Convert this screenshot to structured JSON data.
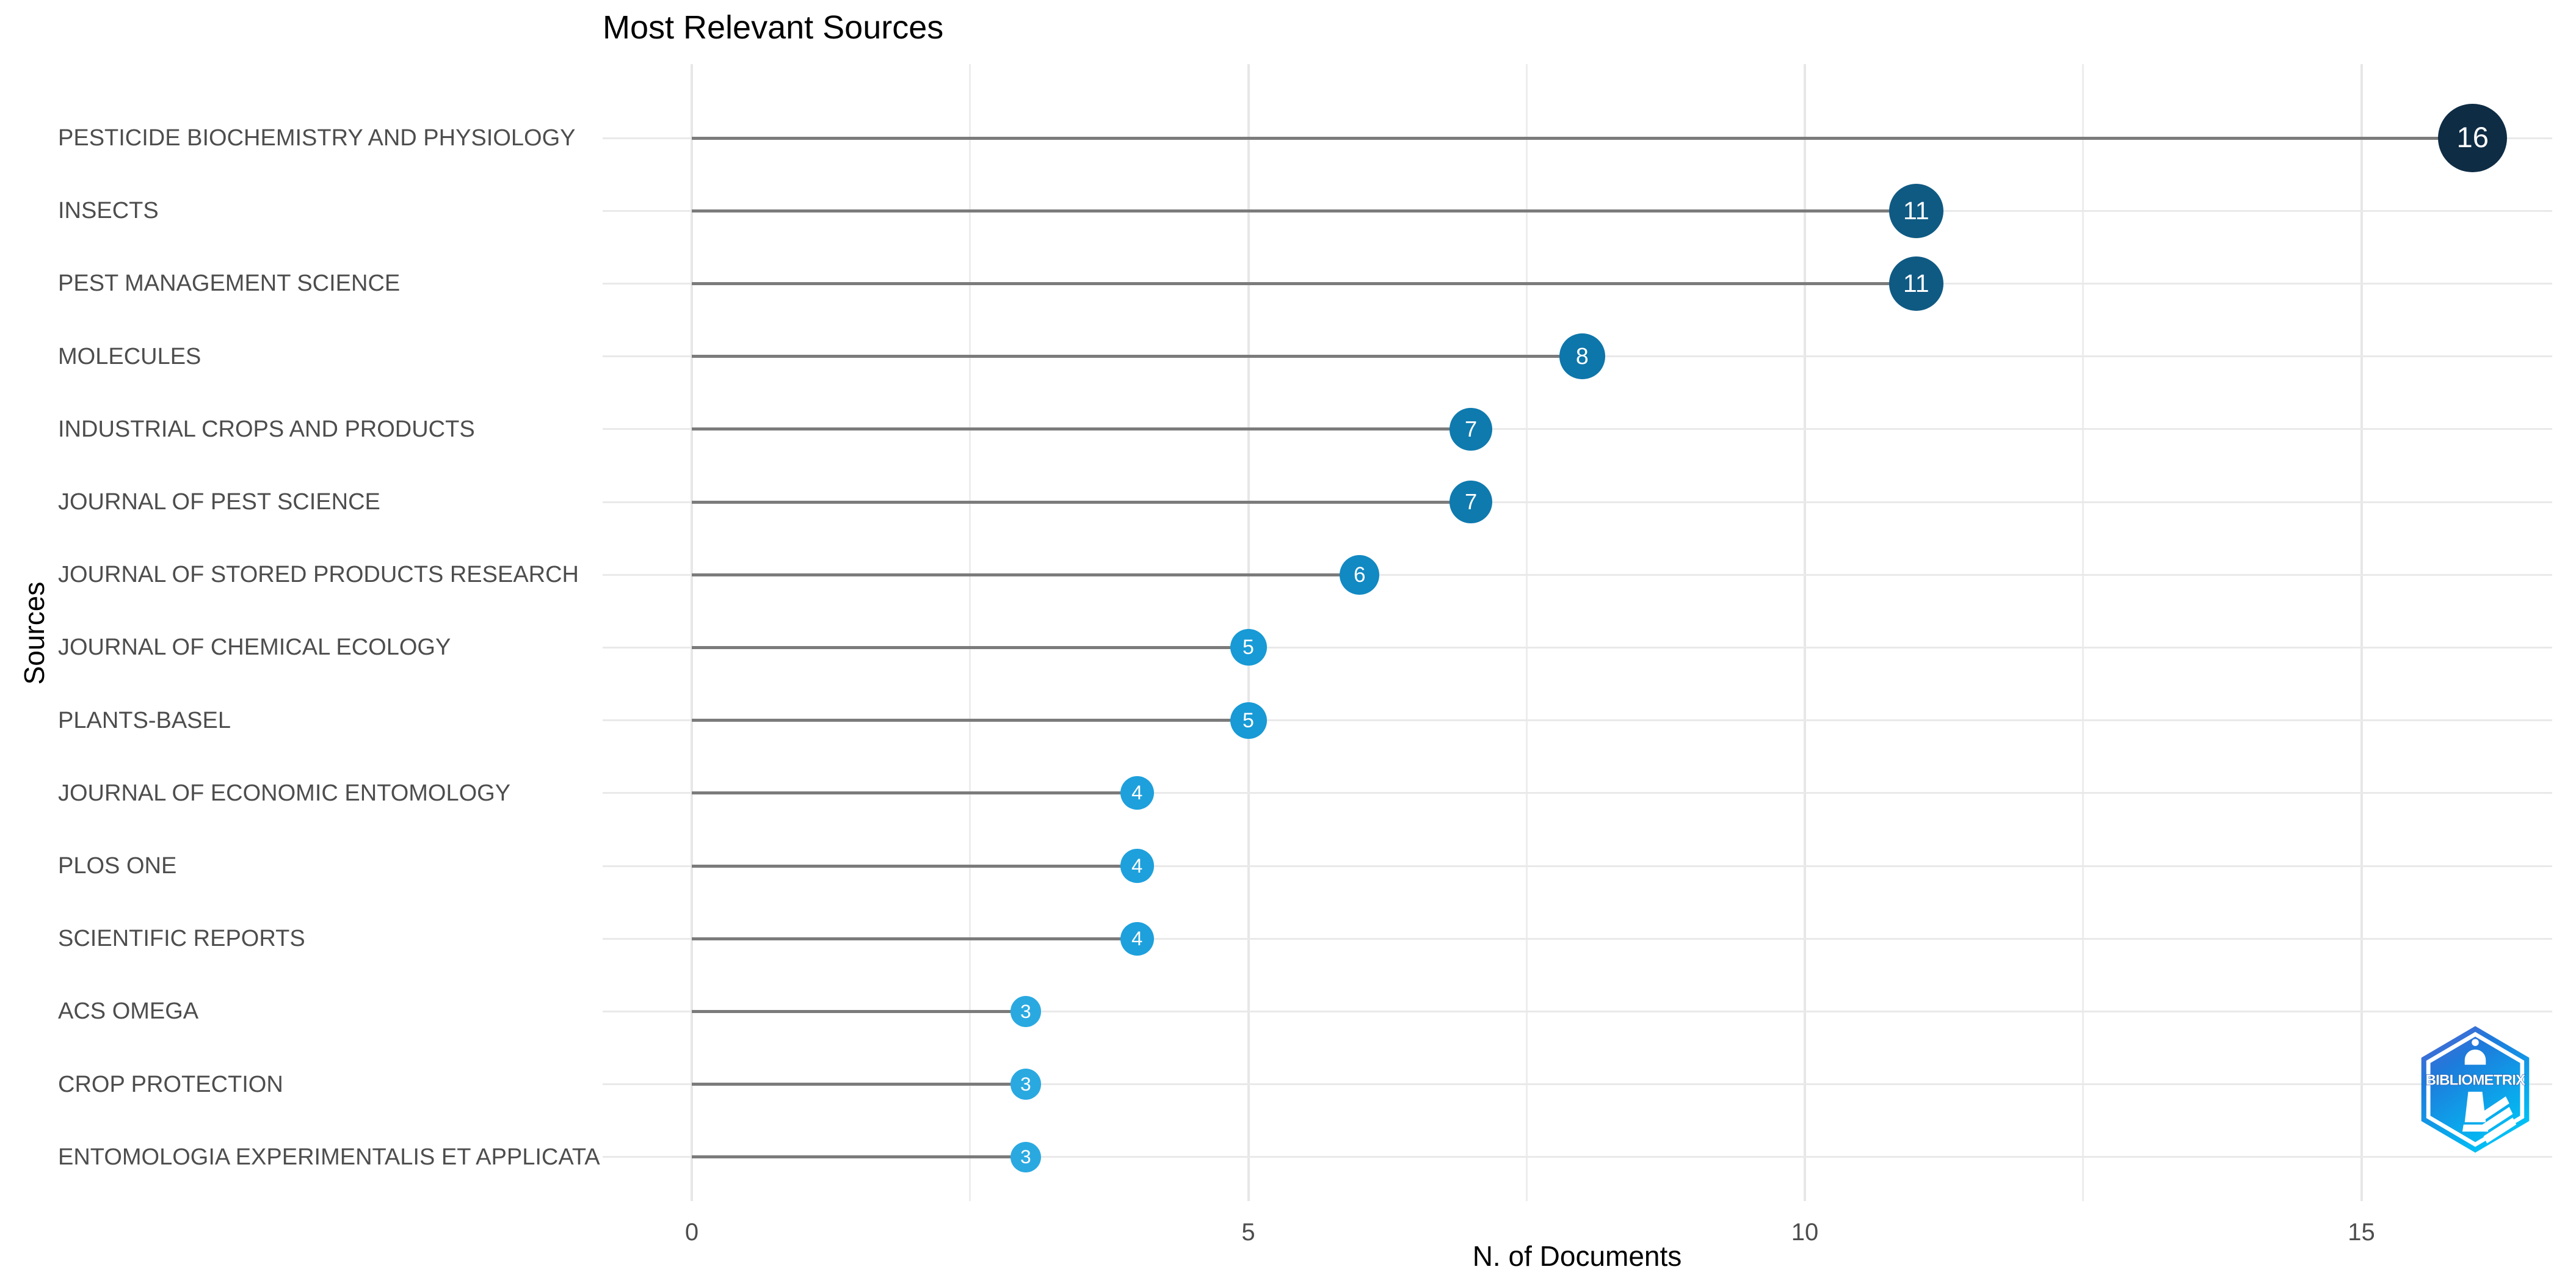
{
  "page": {
    "background": "#ffffff"
  },
  "chart_data": {
    "type": "scatter",
    "variant": "lollipop",
    "title": "Most Relevant Sources",
    "xlabel": "N. of Documents",
    "ylabel": "Sources",
    "xlim": [
      0,
      16.7
    ],
    "xticks": [
      0,
      5,
      10,
      15
    ],
    "x_minor_gridlines": [
      2.5,
      7.5,
      12.5
    ],
    "grid": "on",
    "legend": "none",
    "categories": [
      "PESTICIDE BIOCHEMISTRY AND PHYSIOLOGY",
      "INSECTS",
      "PEST MANAGEMENT SCIENCE",
      "MOLECULES",
      "INDUSTRIAL CROPS AND PRODUCTS",
      "JOURNAL OF PEST SCIENCE",
      "JOURNAL OF STORED PRODUCTS RESEARCH",
      "JOURNAL OF CHEMICAL ECOLOGY",
      "PLANTS-BASEL",
      "JOURNAL OF ECONOMIC ENTOMOLOGY",
      "PLOS ONE",
      "SCIENTIFIC REPORTS",
      "ACS OMEGA",
      "CROP PROTECTION",
      "ENTOMOLOGIA EXPERIMENTALIS ET APPLICATA"
    ],
    "values": [
      16,
      11,
      11,
      8,
      7,
      7,
      6,
      5,
      5,
      4,
      4,
      4,
      3,
      3,
      3
    ],
    "point_colors": [
      "#0E2C44",
      "#0F5A83",
      "#0F5A83",
      "#0D76AA",
      "#0F7AAE",
      "#0F7AAE",
      "#1189C2",
      "#179AD5",
      "#179AD5",
      "#1EA0DC",
      "#1EA0DC",
      "#1EA0DC",
      "#2AA9E1",
      "#2AA9E1",
      "#2AA9E1"
    ],
    "stem_color": "#7b7b7b",
    "gridline_color": "#e8e8e8",
    "label_color": "#4d4d4d",
    "value_text_color": "#ffffff"
  },
  "watermark": {
    "text": "BIBLIOMETRIX",
    "gradient_top": "#5E62D1",
    "gradient_mid": "#1E7ADB",
    "gradient_bottom": "#00C0F5"
  }
}
